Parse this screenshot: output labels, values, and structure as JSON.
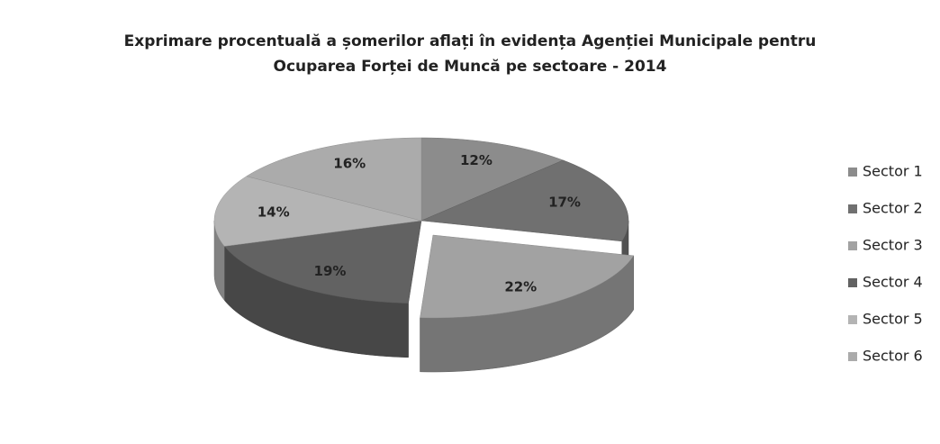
{
  "chart_data": {
    "type": "pie",
    "title": [
      "Exprimare procentuală a șomerilor aflați în evidența Agenției Municipale pentru",
      "Ocuparea Forței de Muncă pe sectoare  - 2014"
    ],
    "categories": [
      "Sector 1",
      "Sector 2",
      "Sector 3",
      "Sector 4",
      "Sector 5",
      "Sector 6"
    ],
    "values": [
      12,
      17,
      22,
      19,
      14,
      16
    ],
    "value_labels": [
      "12%",
      "17%",
      "22%",
      "19%",
      "14%",
      "16%"
    ],
    "colors": [
      "#8c8c8c",
      "#707070",
      "#a2a2a2",
      "#626262",
      "#b4b4b4",
      "#ababab"
    ],
    "exploded": "Sector 3",
    "legend": "right"
  }
}
